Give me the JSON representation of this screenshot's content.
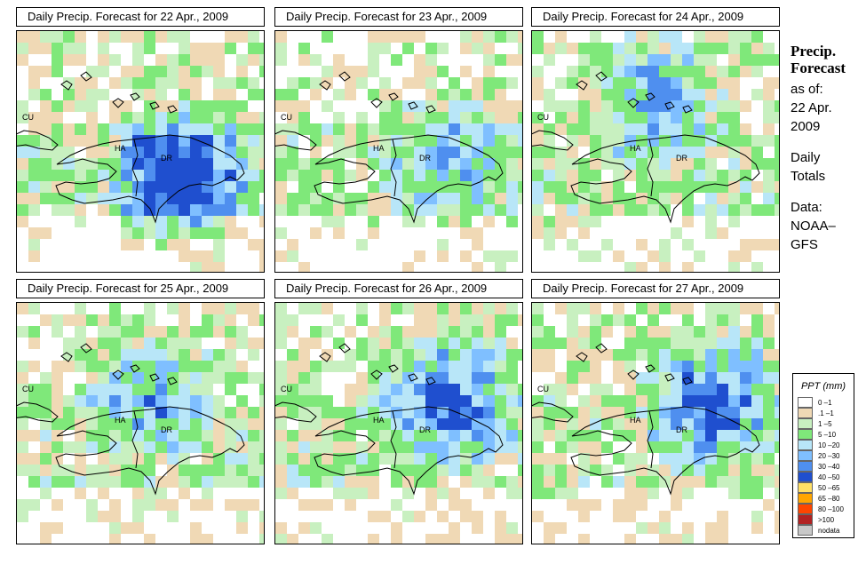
{
  "panels": [
    {
      "title": "Daily Precip. Forecast for  22 Apr., 2009",
      "seed": 11,
      "intensity": 1.6,
      "storm": [
        185,
        165
      ]
    },
    {
      "title": "Daily Precip. Forecast for  23 Apr., 2009",
      "seed": 27,
      "intensity": 0.7,
      "storm": [
        200,
        140
      ]
    },
    {
      "title": "Daily Precip. Forecast for  24 Apr., 2009",
      "seed": 43,
      "intensity": 0.8,
      "storm": [
        140,
        70
      ]
    },
    {
      "title": "Daily Precip. Forecast for  25 Apr., 2009",
      "seed": 59,
      "intensity": 0.75,
      "storm": [
        150,
        100
      ]
    },
    {
      "title": "Daily Precip. Forecast for  26 Apr., 2009",
      "seed": 71,
      "intensity": 1.15,
      "storm": [
        200,
        105
      ]
    },
    {
      "title": "Daily Precip. Forecast for  27 Apr., 2009",
      "seed": 83,
      "intensity": 1.15,
      "storm": [
        205,
        105
      ]
    }
  ],
  "map_labels": {
    "cuba": "CU",
    "haiti": "HA",
    "dominican_republic": "DR"
  },
  "sidebar": {
    "heading_line1": "Precip.",
    "heading_line2": "Forecast",
    "asof_line1": "as of:",
    "asof_line2": "22 Apr.",
    "asof_line3": "2009",
    "totals_line1": "Daily",
    "totals_line2": "Totals",
    "data_line1": "Data:",
    "data_line2": "NOAA–",
    "data_line3": "GFS"
  },
  "legend": {
    "title": "PPT (mm)",
    "entries": [
      {
        "label": "0 –1",
        "color": "#ffffff"
      },
      {
        "label": ".1 –1",
        "color": "#f0d9b5"
      },
      {
        "label": "1 –5",
        "color": "#c8f0c0"
      },
      {
        "label": "5 –10",
        "color": "#7fe87a"
      },
      {
        "label": "10 –20",
        "color": "#b8e6f8"
      },
      {
        "label": "20 –30",
        "color": "#7fbfff"
      },
      {
        "label": "30 –40",
        "color": "#4f8fef"
      },
      {
        "label": "40 –50",
        "color": "#1f4fcf"
      },
      {
        "label": "50 –65",
        "color": "#ffe066"
      },
      {
        "label": "65 –80",
        "color": "#ffa500"
      },
      {
        "label": "80 –100",
        "color": "#ff4500"
      },
      {
        "label": ">100",
        "color": "#b22222"
      },
      {
        "label": "nodata",
        "color": "#c8c8c8"
      }
    ]
  }
}
